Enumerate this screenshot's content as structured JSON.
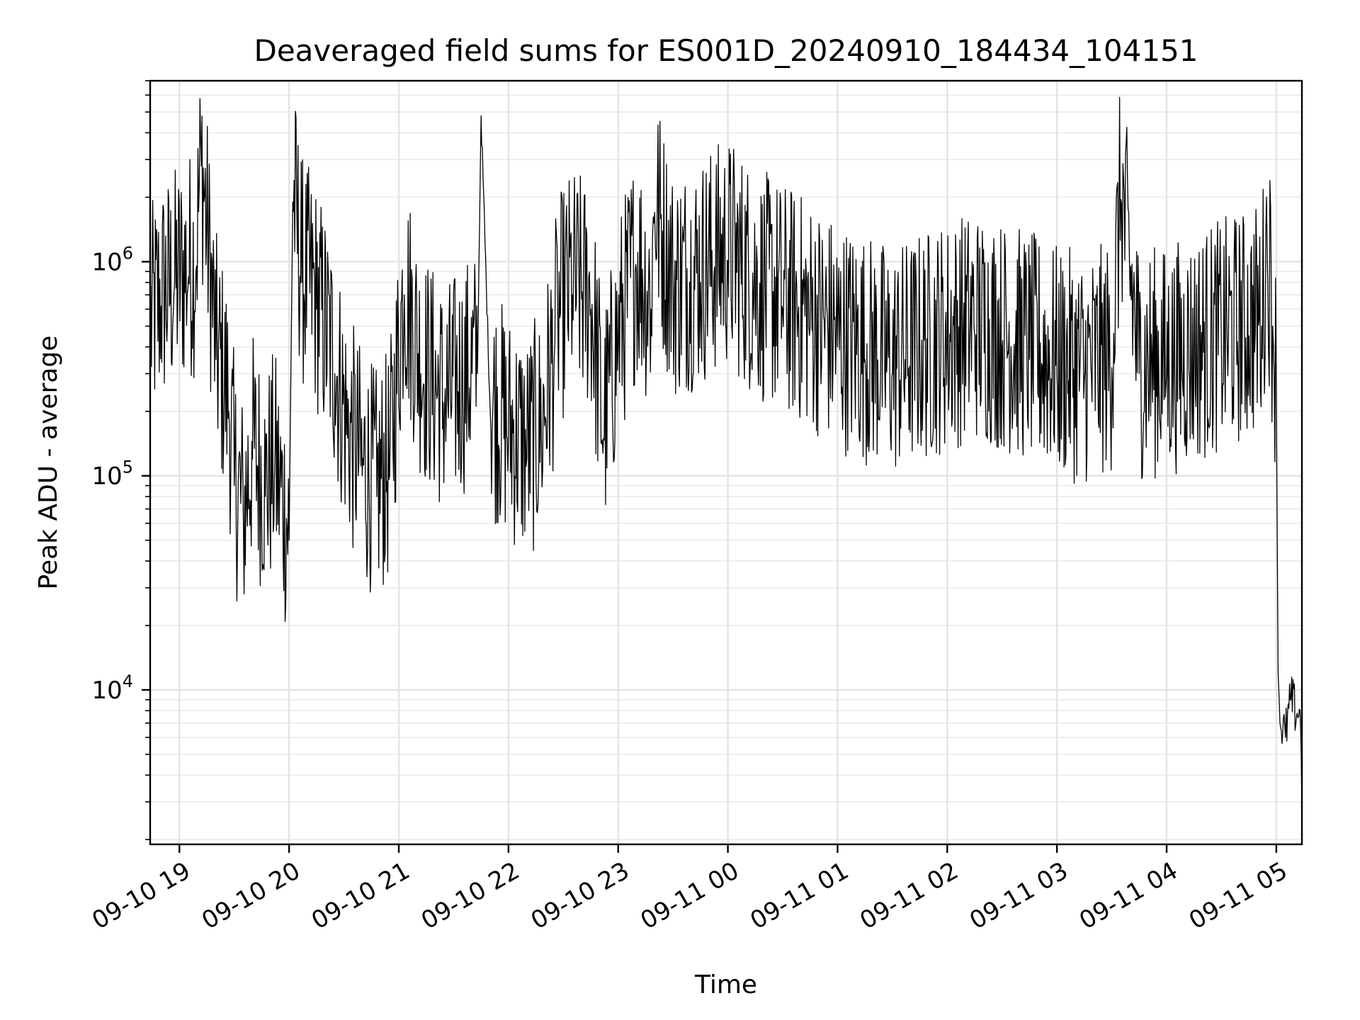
{
  "chart_data": {
    "type": "line",
    "title": "Deaveraged field sums for ES001D_20240910_184434_104151",
    "xlabel": "Time",
    "ylabel": "Peak ADU - average",
    "yscale": "log",
    "ylim": [
      1900,
      7000000
    ],
    "xlim": [
      "2024-09-10 18:44",
      "2024-09-11 05:14"
    ],
    "x_ticks": [
      "09-10 19",
      "09-10 20",
      "09-10 21",
      "09-10 22",
      "09-10 23",
      "09-11 00",
      "09-11 01",
      "09-11 02",
      "09-11 03",
      "09-11 04",
      "09-11 05"
    ],
    "x_tick_times": [
      "2024-09-10 19:00",
      "2024-09-10 20:00",
      "2024-09-10 21:00",
      "2024-09-10 22:00",
      "2024-09-10 23:00",
      "2024-09-11 00:00",
      "2024-09-11 01:00",
      "2024-09-11 02:00",
      "2024-09-11 03:00",
      "2024-09-11 04:00",
      "2024-09-11 05:00"
    ],
    "y_ticks": [
      {
        "value": 10000,
        "base": "10",
        "exp": "4"
      },
      {
        "value": 100000,
        "base": "10",
        "exp": "5"
      },
      {
        "value": 1000000,
        "base": "10",
        "exp": "6"
      }
    ],
    "grid": true,
    "line_color": "#000000",
    "series": [
      {
        "x": [
          "2024-09-10 18:44",
          "2024-09-10 18:50",
          "2024-09-10 18:57",
          "2024-09-10 19:05",
          "2024-09-10 19:09",
          "2024-09-10 19:12",
          "2024-09-10 19:20",
          "2024-09-10 19:27",
          "2024-09-10 19:30",
          "2024-09-10 19:35",
          "2024-09-10 19:40",
          "2024-09-10 19:47",
          "2024-09-10 19:52",
          "2024-09-10 20:00",
          "2024-09-10 20:02",
          "2024-09-10 20:07",
          "2024-09-10 20:15",
          "2024-09-10 20:25",
          "2024-09-10 20:32",
          "2024-09-10 20:40",
          "2024-09-10 20:48",
          "2024-09-10 20:55",
          "2024-09-10 21:03",
          "2024-09-10 21:12",
          "2024-09-10 21:25",
          "2024-09-10 21:35",
          "2024-09-10 21:43",
          "2024-09-10 21:45",
          "2024-09-10 21:50",
          "2024-09-10 22:00",
          "2024-09-10 22:10",
          "2024-09-10 22:18",
          "2024-09-10 22:25",
          "2024-09-10 22:27",
          "2024-09-10 22:35",
          "2024-09-10 22:45",
          "2024-09-10 22:52",
          "2024-09-10 23:00",
          "2024-09-10 23:10",
          "2024-09-10 23:18",
          "2024-09-10 23:20",
          "2024-09-10 23:30",
          "2024-09-10 23:45",
          "2024-09-11 00:00",
          "2024-09-11 00:15",
          "2024-09-11 00:30",
          "2024-09-11 00:45",
          "2024-09-11 01:00",
          "2024-09-11 01:15",
          "2024-09-11 01:30",
          "2024-09-11 01:45",
          "2024-09-11 02:00",
          "2024-09-11 02:15",
          "2024-09-11 02:30",
          "2024-09-11 02:45",
          "2024-09-11 03:00",
          "2024-09-11 03:15",
          "2024-09-11 03:30",
          "2024-09-11 03:35",
          "2024-09-11 03:45",
          "2024-09-11 04:00",
          "2024-09-11 04:15",
          "2024-09-11 04:30",
          "2024-09-11 04:45",
          "2024-09-11 04:52",
          "2024-09-11 04:55",
          "2024-09-11 04:58",
          "2024-09-11 05:00",
          "2024-09-11 05:01",
          "2024-09-11 05:02",
          "2024-09-11 05:05",
          "2024-09-11 05:08",
          "2024-09-11 05:11",
          "2024-09-11 05:13",
          "2024-09-11 05:14"
        ],
        "values": [
          450000,
          620000,
          700000,
          850000,
          900000,
          2800000,
          350000,
          200000,
          90000,
          60000,
          120000,
          80000,
          100000,
          50000,
          1900000,
          800000,
          600000,
          300000,
          150000,
          100000,
          80000,
          100000,
          700000,
          300000,
          200000,
          250000,
          300000,
          4800000,
          200000,
          150000,
          120000,
          150000,
          350000,
          500000,
          700000,
          600000,
          150000,
          400000,
          900000,
          600000,
          1700000,
          700000,
          800000,
          1000000,
          700000,
          600000,
          500000,
          400000,
          350000,
          300000,
          350000,
          400000,
          450000,
          400000,
          350000,
          300000,
          280000,
          320000,
          1950000,
          300000,
          300000,
          350000,
          400000,
          450000,
          500000,
          1100000,
          500000,
          250000,
          12000,
          7000,
          6000,
          9000,
          7500,
          8000,
          3000
        ]
      }
    ]
  }
}
